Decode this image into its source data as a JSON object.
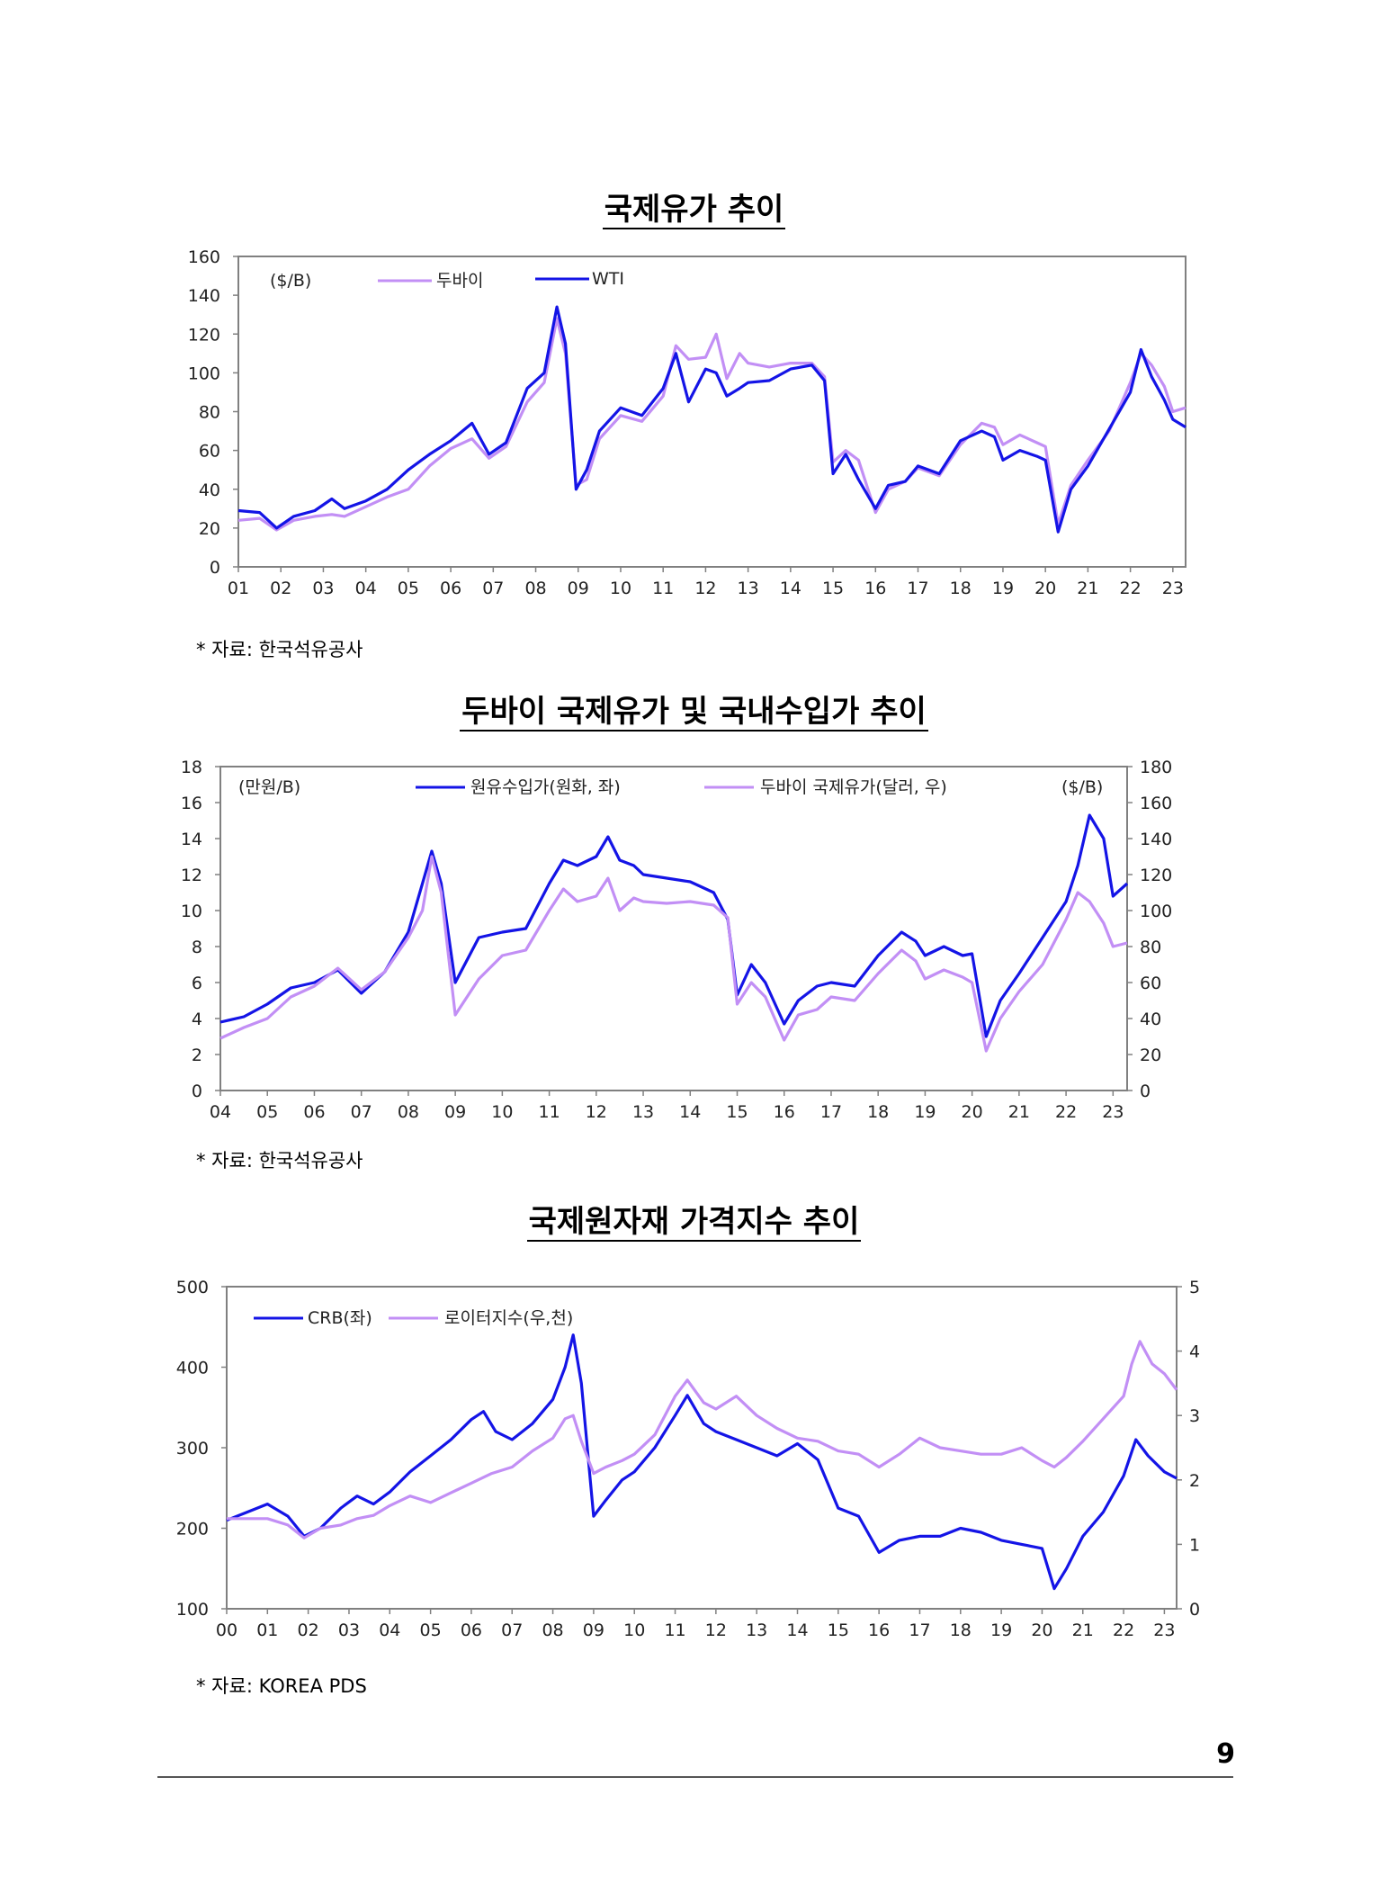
{
  "page": {
    "number": "9"
  },
  "colors": {
    "blue": "#1414E6",
    "lilac": "#C28FF5",
    "axis": "#808080"
  },
  "chart_data": [
    {
      "type": "line",
      "title": "국제유가 추이",
      "unit_label": "($/B)",
      "source": "* 자료: 한국석유공사",
      "x_ticks": [
        "01",
        "02",
        "03",
        "04",
        "05",
        "06",
        "07",
        "08",
        "09",
        "10",
        "11",
        "12",
        "13",
        "14",
        "15",
        "16",
        "17",
        "18",
        "19",
        "20",
        "21",
        "22",
        "23"
      ],
      "x_range": [
        2001.0,
        2023.3
      ],
      "ylim": [
        0,
        160
      ],
      "y_ticks": [
        0,
        20,
        40,
        60,
        80,
        100,
        120,
        140,
        160
      ],
      "series": [
        {
          "name": "두바이",
          "color": "#C28FF5",
          "x": [
            2001,
            2001.5,
            2001.9,
            2002.3,
            2002.8,
            2003.2,
            2003.5,
            2004,
            2004.5,
            2005,
            2005.5,
            2006,
            2006.5,
            2006.9,
            2007.3,
            2007.8,
            2008.2,
            2008.5,
            2008.7,
            2008.95,
            2009.2,
            2009.5,
            2010,
            2010.5,
            2011,
            2011.3,
            2011.6,
            2012,
            2012.25,
            2012.5,
            2012.8,
            2013,
            2013.5,
            2014,
            2014.5,
            2014.8,
            2015,
            2015.3,
            2015.6,
            2016,
            2016.3,
            2016.7,
            2017,
            2017.5,
            2018,
            2018.5,
            2018.8,
            2019,
            2019.4,
            2019.8,
            2020,
            2020.3,
            2020.6,
            2021,
            2021.5,
            2022,
            2022.25,
            2022.5,
            2022.8,
            2023,
            2023.3
          ],
          "y": [
            24,
            25,
            19,
            24,
            26,
            27,
            26,
            31,
            36,
            40,
            52,
            61,
            66,
            56,
            62,
            85,
            95,
            128,
            110,
            42,
            45,
            66,
            78,
            75,
            88,
            114,
            107,
            108,
            120,
            97,
            110,
            105,
            103,
            105,
            105,
            98,
            54,
            60,
            55,
            28,
            40,
            44,
            51,
            47,
            63,
            74,
            72,
            63,
            68,
            64,
            62,
            22,
            42,
            55,
            70,
            95,
            110,
            104,
            93,
            80,
            82
          ]
        },
        {
          "name": "WTI",
          "color": "#1414E6",
          "x": [
            2001,
            2001.5,
            2001.9,
            2002.3,
            2002.8,
            2003.2,
            2003.5,
            2004,
            2004.5,
            2005,
            2005.5,
            2006,
            2006.5,
            2006.9,
            2007.3,
            2007.8,
            2008.2,
            2008.5,
            2008.7,
            2008.95,
            2009.2,
            2009.5,
            2010,
            2010.5,
            2011,
            2011.3,
            2011.6,
            2012,
            2012.25,
            2012.5,
            2012.8,
            2013,
            2013.5,
            2014,
            2014.5,
            2014.8,
            2015,
            2015.3,
            2015.6,
            2016,
            2016.3,
            2016.7,
            2017,
            2017.5,
            2018,
            2018.5,
            2018.8,
            2019,
            2019.4,
            2019.8,
            2020,
            2020.3,
            2020.6,
            2021,
            2021.5,
            2022,
            2022.25,
            2022.5,
            2022.8,
            2023,
            2023.3
          ],
          "y": [
            29,
            28,
            20,
            26,
            29,
            35,
            30,
            34,
            40,
            50,
            58,
            65,
            74,
            58,
            64,
            92,
            100,
            134,
            115,
            40,
            50,
            70,
            82,
            78,
            92,
            110,
            85,
            102,
            100,
            88,
            92,
            95,
            96,
            102,
            104,
            96,
            48,
            58,
            45,
            30,
            42,
            44,
            52,
            48,
            65,
            70,
            67,
            55,
            60,
            57,
            55,
            18,
            40,
            52,
            71,
            90,
            112,
            98,
            86,
            76,
            72
          ]
        }
      ]
    },
    {
      "type": "line",
      "title": "두바이 국제유가 및 국내수입가 추이",
      "left_unit_label": "(만원/B)",
      "right_unit_label": "($/B)",
      "source": "* 자료: 한국석유공사",
      "x_ticks": [
        "04",
        "05",
        "06",
        "07",
        "08",
        "09",
        "10",
        "11",
        "12",
        "13",
        "14",
        "15",
        "16",
        "17",
        "18",
        "19",
        "20",
        "21",
        "22",
        "23"
      ],
      "x_range": [
        2004.0,
        2023.3
      ],
      "ylim_left": [
        0,
        18
      ],
      "ylim_right": [
        0,
        180
      ],
      "y_ticks_left": [
        0,
        2,
        4,
        6,
        8,
        10,
        12,
        14,
        16,
        18
      ],
      "y_ticks_right": [
        0,
        20,
        40,
        60,
        80,
        100,
        120,
        140,
        160,
        180
      ],
      "series": [
        {
          "name": "원유수입가(원화, 좌)",
          "axis": "left",
          "color": "#1414E6",
          "x": [
            2004,
            2004.5,
            2005,
            2005.5,
            2006,
            2006.5,
            2007,
            2007.5,
            2008,
            2008.3,
            2008.5,
            2008.7,
            2009,
            2009.5,
            2010,
            2010.5,
            2011,
            2011.3,
            2011.6,
            2012,
            2012.25,
            2012.5,
            2012.8,
            2013,
            2013.5,
            2014,
            2014.5,
            2014.8,
            2015,
            2015.3,
            2015.6,
            2016,
            2016.3,
            2016.7,
            2017,
            2017.5,
            2018,
            2018.5,
            2018.8,
            2019,
            2019.4,
            2019.8,
            2020,
            2020.3,
            2020.6,
            2021,
            2021.5,
            2022,
            2022.25,
            2022.5,
            2022.8,
            2023,
            2023.3
          ],
          "y": [
            3.8,
            4.1,
            4.8,
            5.7,
            6.0,
            6.7,
            5.4,
            6.6,
            8.8,
            11.5,
            13.3,
            11.5,
            6.0,
            8.5,
            8.8,
            9.0,
            11.5,
            12.8,
            12.5,
            13.0,
            14.1,
            12.8,
            12.5,
            12.0,
            11.8,
            11.6,
            11.0,
            9.5,
            5.3,
            7.0,
            6.0,
            3.7,
            5.0,
            5.8,
            6.0,
            5.8,
            7.5,
            8.8,
            8.3,
            7.5,
            8.0,
            7.5,
            7.6,
            3.0,
            5.0,
            6.5,
            8.5,
            10.5,
            12.5,
            15.3,
            14.0,
            10.8,
            11.5
          ]
        },
        {
          "name": "두바이 국제유가(달러, 우)",
          "axis": "right",
          "color": "#C28FF5",
          "x": [
            2004,
            2004.5,
            2005,
            2005.5,
            2006,
            2006.5,
            2007,
            2007.5,
            2008,
            2008.3,
            2008.5,
            2008.7,
            2009,
            2009.5,
            2010,
            2010.5,
            2011,
            2011.3,
            2011.6,
            2012,
            2012.25,
            2012.5,
            2012.8,
            2013,
            2013.5,
            2014,
            2014.5,
            2014.8,
            2015,
            2015.3,
            2015.6,
            2016,
            2016.3,
            2016.7,
            2017,
            2017.5,
            2018,
            2018.5,
            2018.8,
            2019,
            2019.4,
            2019.8,
            2020,
            2020.3,
            2020.6,
            2021,
            2021.5,
            2022,
            2022.25,
            2022.5,
            2022.8,
            2023,
            2023.3
          ],
          "y": [
            29,
            35,
            40,
            52,
            58,
            68,
            56,
            66,
            85,
            100,
            130,
            110,
            42,
            62,
            75,
            78,
            100,
            112,
            105,
            108,
            118,
            100,
            107,
            105,
            104,
            105,
            103,
            96,
            48,
            60,
            52,
            28,
            42,
            45,
            52,
            50,
            65,
            78,
            72,
            62,
            67,
            63,
            60,
            22,
            40,
            55,
            70,
            95,
            110,
            105,
            93,
            80,
            82
          ]
        }
      ]
    },
    {
      "type": "line",
      "title": "국제원자재 가격지수 추이",
      "source": "* 자료: KOREA PDS",
      "x_ticks": [
        "00",
        "01",
        "02",
        "03",
        "04",
        "05",
        "06",
        "07",
        "08",
        "09",
        "10",
        "11",
        "12",
        "13",
        "14",
        "15",
        "16",
        "17",
        "18",
        "19",
        "20",
        "21",
        "22",
        "23"
      ],
      "x_range": [
        2000.0,
        2023.3
      ],
      "ylim_left": [
        100,
        500
      ],
      "ylim_right": [
        0,
        5
      ],
      "y_ticks_left": [
        100,
        200,
        300,
        400,
        500
      ],
      "y_ticks_right": [
        0,
        1,
        2,
        3,
        4,
        5
      ],
      "series": [
        {
          "name": "CRB(좌)",
          "axis": "left",
          "color": "#1414E6",
          "x": [
            2000,
            2000.5,
            2001,
            2001.5,
            2001.9,
            2002.3,
            2002.8,
            2003.2,
            2003.6,
            2004,
            2004.5,
            2005,
            2005.5,
            2006,
            2006.3,
            2006.6,
            2007,
            2007.5,
            2008,
            2008.3,
            2008.5,
            2008.7,
            2009,
            2009.3,
            2009.7,
            2010,
            2010.5,
            2011,
            2011.3,
            2011.7,
            2012,
            2012.5,
            2013,
            2013.5,
            2014,
            2014.5,
            2015,
            2015.5,
            2016,
            2016.5,
            2017,
            2017.5,
            2018,
            2018.5,
            2019,
            2019.5,
            2020,
            2020.3,
            2020.6,
            2021,
            2021.5,
            2022,
            2022.3,
            2022.6,
            2023,
            2023.3
          ],
          "y": [
            210,
            220,
            230,
            215,
            190,
            200,
            225,
            240,
            230,
            245,
            270,
            290,
            310,
            335,
            345,
            320,
            310,
            330,
            360,
            400,
            440,
            380,
            215,
            235,
            260,
            270,
            300,
            340,
            365,
            330,
            320,
            310,
            300,
            290,
            305,
            285,
            225,
            215,
            170,
            185,
            190,
            190,
            200,
            195,
            185,
            180,
            175,
            125,
            150,
            190,
            220,
            265,
            310,
            290,
            270,
            262
          ]
        },
        {
          "name": "로이터지수(우,천)",
          "axis": "right",
          "color": "#C28FF5",
          "x": [
            2000,
            2000.5,
            2001,
            2001.5,
            2001.9,
            2002.3,
            2002.8,
            2003.2,
            2003.6,
            2004,
            2004.5,
            2005,
            2005.5,
            2006,
            2006.5,
            2007,
            2007.5,
            2008,
            2008.3,
            2008.5,
            2008.7,
            2009,
            2009.3,
            2009.7,
            2010,
            2010.5,
            2011,
            2011.3,
            2011.7,
            2012,
            2012.5,
            2013,
            2013.5,
            2014,
            2014.5,
            2015,
            2015.5,
            2016,
            2016.5,
            2017,
            2017.5,
            2018,
            2018.5,
            2019,
            2019.5,
            2020,
            2020.3,
            2020.6,
            2021,
            2021.5,
            2022,
            2022.2,
            2022.4,
            2022.7,
            2023,
            2023.3
          ],
          "y": [
            1.4,
            1.4,
            1.4,
            1.3,
            1.1,
            1.25,
            1.3,
            1.4,
            1.45,
            1.6,
            1.75,
            1.65,
            1.8,
            1.95,
            2.1,
            2.2,
            2.45,
            2.65,
            2.95,
            3.0,
            2.6,
            2.1,
            2.2,
            2.3,
            2.4,
            2.7,
            3.3,
            3.55,
            3.2,
            3.1,
            3.3,
            3.0,
            2.8,
            2.65,
            2.6,
            2.45,
            2.4,
            2.2,
            2.4,
            2.65,
            2.5,
            2.45,
            2.4,
            2.4,
            2.5,
            2.3,
            2.2,
            2.35,
            2.6,
            2.95,
            3.3,
            3.8,
            4.15,
            3.8,
            3.65,
            3.4
          ]
        }
      ]
    }
  ]
}
